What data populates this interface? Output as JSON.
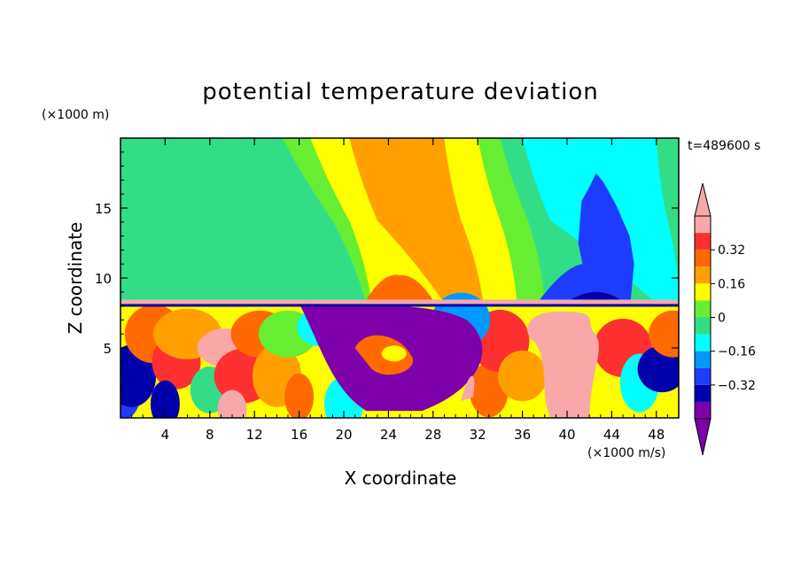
{
  "chart_data": {
    "type": "heatmap",
    "title": "potential temperature deviation",
    "xlabel": "X coordinate",
    "ylabel": "Z coordinate",
    "x_unit": "(×1000 m/s)",
    "y_unit": "(×1000 m)",
    "time_label": "t=489600 s",
    "xlim": [
      0,
      50
    ],
    "ylim": [
      0,
      20
    ],
    "x_ticks": [
      4,
      8,
      12,
      16,
      20,
      24,
      28,
      32,
      36,
      40,
      44,
      48
    ],
    "y_ticks": [
      5,
      10,
      15
    ],
    "colorbar": {
      "levels": [
        {
          "lo": 0.4,
          "hi": 0.48,
          "color": "#f8a8a8"
        },
        {
          "lo": 0.32,
          "hi": 0.4,
          "color": "#ff3030"
        },
        {
          "lo": 0.24,
          "hi": 0.32,
          "color": "#ff6a00"
        },
        {
          "lo": 0.16,
          "hi": 0.24,
          "color": "#ffa000"
        },
        {
          "lo": 0.08,
          "hi": 0.16,
          "color": "#ffff00"
        },
        {
          "lo": 0.0,
          "hi": 0.08,
          "color": "#66ee33"
        },
        {
          "lo": -0.08,
          "hi": 0.0,
          "color": "#33dd88"
        },
        {
          "lo": -0.16,
          "hi": -0.08,
          "color": "#00ffff"
        },
        {
          "lo": -0.24,
          "hi": -0.16,
          "color": "#0099ff"
        },
        {
          "lo": -0.32,
          "hi": -0.24,
          "color": "#1e3cff"
        },
        {
          "lo": -0.4,
          "hi": -0.32,
          "color": "#0000aa"
        },
        {
          "lo": -0.48,
          "hi": -0.4,
          "color": "#7d00aa"
        }
      ],
      "labels": [
        "0.32",
        "0.16",
        "0",
        "−0.16",
        "−0.32"
      ],
      "label_values": [
        0.32,
        0.16,
        0,
        -0.16,
        -0.32
      ],
      "over_color": "#f8a8a8",
      "under_color": "#7d00aa"
    },
    "interface_height": 8.2,
    "upper_bands": [
      {
        "x": [
          0,
          6,
          12
        ],
        "shift": 0,
        "color": "#33dd88",
        "base": true
      },
      {
        "x": [
          14.5,
          19,
          22
        ],
        "color": "#66ee33"
      },
      {
        "x": [
          17,
          20.5,
          22.5
        ],
        "color": "#ffff00"
      },
      {
        "x": [
          20.5,
          23,
          29
        ],
        "color": "#ffa000"
      },
      {
        "x": [
          29,
          30.5,
          32.5
        ],
        "color": "#ffff00"
      },
      {
        "x": [
          32,
          34,
          35.5
        ],
        "color": "#66ee33"
      },
      {
        "x": [
          34,
          36.5,
          38
        ],
        "color": "#33dd88"
      },
      {
        "x": [
          36,
          38.5,
          48
        ],
        "color": "#00ffff"
      },
      {
        "x": [
          48,
          49,
          50
        ],
        "color": "#33dd88"
      }
    ],
    "upper_features": [
      {
        "name": "warm-dome",
        "x": [
          23.5,
          26.5
        ],
        "z": [
          8.3,
          10.2
        ],
        "color": "#ff6a00"
      },
      {
        "name": "cold-plume",
        "x": [
          39,
          46
        ],
        "z": [
          8.3,
          17.5
        ],
        "color": "#1e3cff"
      },
      {
        "name": "cold-core",
        "x": [
          40.5,
          45
        ],
        "z": [
          8.3,
          9.2
        ],
        "color": "#0000aa"
      }
    ],
    "lower_features": [
      {
        "name": "purple-vortex",
        "cx": 26,
        "cz": 4.2,
        "color": "#7d00aa"
      },
      {
        "name": "warm-plume",
        "cx": 40,
        "cz": 4.0,
        "color": "#f8a8a8"
      },
      {
        "name": "turbulent-left",
        "cx": 8,
        "cz": 4.5,
        "color": "#ff6a00"
      }
    ]
  }
}
